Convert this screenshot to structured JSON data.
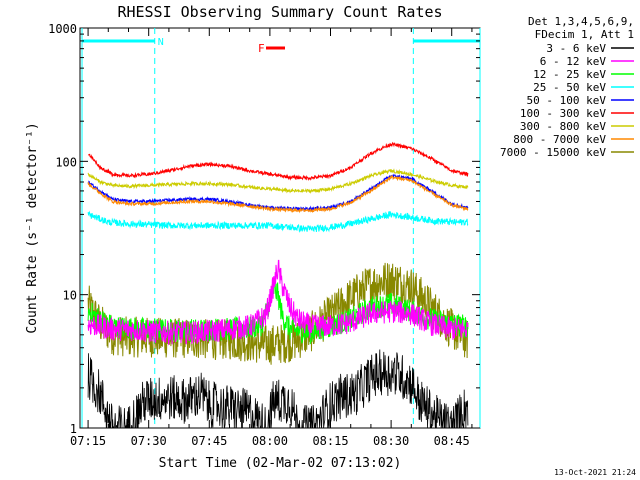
{
  "chart_data": {
    "type": "line",
    "title": "RHESSI Observing Summary Count Rates",
    "xlabel": "Start Time (02-Mar-02 07:13:02)",
    "ylabel": "Count Rate (s⁻¹ detector⁻¹)",
    "y_scale": "log",
    "ylim": [
      1,
      1000
    ],
    "xlim_minutes": [
      -2.0,
      97.0
    ],
    "x_ticks": [
      {
        "label": "07:15",
        "minute": 0
      },
      {
        "label": "07:30",
        "minute": 15
      },
      {
        "label": "07:45",
        "minute": 30
      },
      {
        "label": "08:00",
        "minute": 45
      },
      {
        "label": "08:15",
        "minute": 60
      },
      {
        "label": "08:30",
        "minute": 75
      },
      {
        "label": "08:45",
        "minute": 90
      }
    ],
    "y_ticks": [
      {
        "label": "1",
        "value": 1
      },
      {
        "label": "10",
        "value": 10
      },
      {
        "label": "100",
        "value": 100
      },
      {
        "label": "1000",
        "value": 1000
      }
    ],
    "legend_position": "right",
    "legend_header": [
      "Det 1,3,4,5,6,9,",
      "FDecim 1, Att 1"
    ],
    "series": [
      {
        "name": "3 - 6 keV",
        "color": "#000000",
        "x": [
          0,
          3,
          6,
          10,
          14,
          20,
          24,
          28,
          30,
          36,
          40,
          44,
          46,
          50,
          52,
          56,
          60,
          62,
          66,
          70,
          72,
          76,
          80,
          82,
          86,
          90,
          94
        ],
        "y": [
          2.5,
          1.8,
          1,
          1,
          1.6,
          1.7,
          1.6,
          1.8,
          1.5,
          1.4,
          1.3,
          1,
          1.6,
          1.6,
          1,
          1,
          1.5,
          1.7,
          1.8,
          2.4,
          2.6,
          2.6,
          2.2,
          1.6,
          1.2,
          1,
          1.5
        ]
      },
      {
        "name": "6 - 12 keV",
        "color": "#ff00ff",
        "x": [
          0,
          3,
          6,
          10,
          15,
          20,
          25,
          30,
          35,
          40,
          44,
          46,
          47,
          48,
          50,
          52,
          55,
          60,
          65,
          70,
          75,
          80,
          85,
          90,
          94
        ],
        "y": [
          6,
          5.8,
          5.5,
          5.5,
          5.3,
          5.2,
          5.2,
          5.3,
          5.5,
          5.8,
          7,
          12,
          16,
          12,
          8,
          6.5,
          5.8,
          5.8,
          6.2,
          7.2,
          7.5,
          7.2,
          6,
          5.5,
          5.5
        ]
      },
      {
        "name": "12 - 25 keV",
        "color": "#00ff00",
        "x": [
          0,
          3,
          6,
          10,
          15,
          20,
          25,
          30,
          35,
          40,
          43,
          45,
          46,
          47,
          48,
          50,
          55,
          60,
          65,
          70,
          75,
          80,
          85,
          90,
          94
        ],
        "y": [
          7.5,
          6.5,
          5.8,
          5.6,
          5.5,
          5.4,
          5.4,
          5.5,
          5.5,
          5.6,
          6,
          9,
          11,
          10,
          7,
          5.5,
          5.2,
          5.8,
          6.5,
          8,
          8.5,
          7.5,
          6.5,
          6,
          5.8
        ]
      },
      {
        "name": "25 - 50 keV",
        "color": "#00ffff",
        "x": [
          0,
          5,
          10,
          20,
          30,
          40,
          45,
          50,
          55,
          60,
          65,
          70,
          75,
          80,
          85,
          90,
          94
        ],
        "y": [
          40,
          35,
          34,
          33,
          33,
          33,
          33,
          32,
          31,
          32,
          34,
          37,
          40,
          38,
          36,
          35,
          35
        ]
      },
      {
        "name": "50 - 100 keV",
        "color": "#0000ff",
        "x": [
          0,
          3,
          6,
          10,
          15,
          20,
          25,
          30,
          35,
          40,
          45,
          50,
          55,
          60,
          65,
          70,
          75,
          80,
          85,
          90,
          94
        ],
        "y": [
          70,
          60,
          52,
          50,
          50,
          51,
          52,
          52,
          50,
          47,
          45,
          44,
          44,
          45,
          50,
          62,
          78,
          74,
          60,
          48,
          45
        ]
      },
      {
        "name": "100 - 300 keV",
        "color": "#ff0000",
        "x": [
          0,
          3,
          6,
          10,
          15,
          20,
          25,
          30,
          35,
          40,
          45,
          50,
          55,
          60,
          65,
          70,
          75,
          80,
          85,
          90,
          94
        ],
        "y": [
          115,
          90,
          80,
          78,
          80,
          85,
          92,
          95,
          92,
          85,
          80,
          76,
          75,
          78,
          90,
          115,
          135,
          125,
          105,
          85,
          80
        ]
      },
      {
        "name": "300 - 800 keV",
        "color": "#cccc00",
        "x": [
          0,
          3,
          6,
          10,
          15,
          20,
          25,
          30,
          35,
          40,
          45,
          50,
          55,
          60,
          65,
          70,
          75,
          80,
          85,
          90,
          94
        ],
        "y": [
          80,
          70,
          66,
          65,
          66,
          67,
          68,
          68,
          67,
          64,
          62,
          60,
          60,
          62,
          68,
          78,
          85,
          80,
          72,
          66,
          64
        ]
      },
      {
        "name": "800 - 7000 keV",
        "color": "#ff8800",
        "x": [
          0,
          3,
          6,
          10,
          15,
          20,
          25,
          30,
          35,
          40,
          45,
          50,
          55,
          60,
          65,
          70,
          75,
          80,
          85,
          90,
          94
        ],
        "y": [
          68,
          58,
          50,
          48,
          48,
          49,
          50,
          50,
          48,
          46,
          44,
          43,
          43,
          44,
          49,
          60,
          76,
          72,
          58,
          47,
          44
        ]
      },
      {
        "name": "7000 - 15000 keV",
        "color": "#888800",
        "x": [
          0,
          3,
          6,
          10,
          15,
          20,
          25,
          30,
          35,
          40,
          44,
          48,
          52,
          55,
          60,
          65,
          70,
          75,
          80,
          85,
          90,
          94
        ],
        "y": [
          8.5,
          6,
          5,
          4.8,
          4.8,
          4.7,
          4.7,
          4.6,
          4.6,
          4.4,
          4.2,
          4.3,
          4.6,
          5.2,
          7,
          9.5,
          12,
          13,
          11.5,
          8,
          5.5,
          4.5
        ]
      }
    ],
    "annotations": {
      "night_label": "N",
      "flare_label": "F",
      "saa_label": "",
      "night_periods_minutes": [
        [
          -1.5,
          16.5
        ],
        [
          80.5,
          97
        ]
      ],
      "flare_period_minutes": [
        43,
        49
      ]
    },
    "colors": {
      "night": "#00ffff",
      "flare": "#ff0000",
      "axes": "#000000"
    }
  },
  "footer_timestamp": "13-Oct-2021 21:24"
}
